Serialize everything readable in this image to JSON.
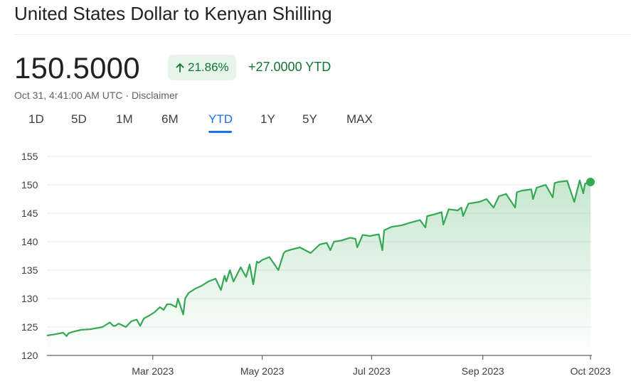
{
  "header": {
    "title": "United States Dollar to Kenyan Shilling"
  },
  "quote": {
    "price": "150.5000",
    "percent_change": "21.86%",
    "arrow_icon": "arrow-up-icon",
    "ytd_change": "+27.0000 YTD",
    "timestamp": "Oct 31, 4:41:00 AM UTC",
    "separator": " · ",
    "disclaimer": "Disclaimer",
    "positive_color": "#137333",
    "badge_bg": "#e6f4ea"
  },
  "tabs": [
    {
      "label": "1D",
      "active": false
    },
    {
      "label": "5D",
      "active": false
    },
    {
      "label": "1M",
      "active": false
    },
    {
      "label": "6M",
      "active": false
    },
    {
      "label": "YTD",
      "active": true
    },
    {
      "label": "1Y",
      "active": false
    },
    {
      "label": "5Y",
      "active": false
    },
    {
      "label": "MAX",
      "active": false
    }
  ],
  "chart_data": {
    "type": "area",
    "line_color": "#34a853",
    "ylim": [
      120,
      155
    ],
    "y_ticks": [
      120,
      125,
      130,
      135,
      140,
      145,
      150,
      155
    ],
    "x_range": [
      "2023-01-01",
      "2023-10-31"
    ],
    "x_ticks": [
      {
        "date": "2023-03-01",
        "label": "Mar 2023"
      },
      {
        "date": "2023-05-01",
        "label": "May 2023"
      },
      {
        "date": "2023-07-01",
        "label": "Jul 2023"
      },
      {
        "date": "2023-09-01",
        "label": "Sep 2023"
      },
      {
        "date": "2023-10-31",
        "label": "Oct 2023"
      }
    ],
    "grid": true,
    "series": [
      {
        "x": [
          "2023-01-01",
          "2023-01-05",
          "2023-01-10",
          "2023-01-12",
          "2023-01-13",
          "2023-01-16",
          "2023-01-20",
          "2023-01-25",
          "2023-02-01",
          "2023-02-05",
          "2023-02-07",
          "2023-02-08",
          "2023-02-10",
          "2023-02-14",
          "2023-02-17",
          "2023-02-20",
          "2023-02-22",
          "2023-02-24",
          "2023-02-27",
          "2023-03-02",
          "2023-03-05",
          "2023-03-07",
          "2023-03-09",
          "2023-03-11",
          "2023-03-14",
          "2023-03-15",
          "2023-03-18",
          "2023-03-19",
          "2023-03-21",
          "2023-03-25",
          "2023-03-28",
          "2023-04-01",
          "2023-04-05",
          "2023-04-08",
          "2023-04-10",
          "2023-04-11",
          "2023-04-13",
          "2023-04-15",
          "2023-04-19",
          "2023-04-22",
          "2023-04-24",
          "2023-04-26",
          "2023-04-28",
          "2023-04-29",
          "2023-05-01",
          "2023-05-05",
          "2023-05-10",
          "2023-05-13",
          "2023-05-14",
          "2023-05-17",
          "2023-05-22",
          "2023-05-28",
          "2023-06-02",
          "2023-06-06",
          "2023-06-08",
          "2023-06-10",
          "2023-06-14",
          "2023-06-19",
          "2023-06-22",
          "2023-06-23",
          "2023-06-26",
          "2023-06-30",
          "2023-07-05",
          "2023-07-07",
          "2023-07-08",
          "2023-07-12",
          "2023-07-18",
          "2023-07-22",
          "2023-07-28",
          "2023-07-31",
          "2023-08-01",
          "2023-08-05",
          "2023-08-09",
          "2023-08-10",
          "2023-08-13",
          "2023-08-18",
          "2023-08-20",
          "2023-08-21",
          "2023-08-24",
          "2023-08-30",
          "2023-09-03",
          "2023-09-07",
          "2023-09-10",
          "2023-09-14",
          "2023-09-19",
          "2023-09-20",
          "2023-09-23",
          "2023-09-28",
          "2023-09-29",
          "2023-10-01",
          "2023-10-06",
          "2023-10-10",
          "2023-10-11",
          "2023-10-13",
          "2023-10-18",
          "2023-10-22",
          "2023-10-25",
          "2023-10-27",
          "2023-10-28",
          "2023-10-31"
        ],
        "y": [
          123.5,
          123.7,
          124.0,
          123.4,
          123.9,
          124.2,
          124.5,
          124.6,
          125.0,
          125.8,
          125.2,
          125.2,
          125.6,
          125.0,
          126.0,
          126.3,
          125.2,
          126.5,
          127.0,
          127.6,
          128.5,
          128.0,
          129.0,
          129.0,
          128.5,
          130.0,
          127.2,
          130.0,
          131.0,
          131.8,
          132.2,
          133.0,
          133.5,
          131.5,
          134.0,
          133.0,
          135.0,
          133.0,
          135.5,
          133.8,
          136.0,
          132.5,
          136.5,
          136.3,
          136.8,
          137.3,
          135.0,
          138.0,
          138.3,
          138.6,
          139.0,
          138.0,
          139.5,
          139.8,
          138.5,
          140.0,
          140.2,
          140.7,
          140.5,
          139.0,
          141.2,
          141.0,
          141.3,
          138.5,
          142.0,
          142.6,
          142.9,
          143.3,
          143.8,
          142.5,
          144.5,
          144.8,
          145.2,
          143.0,
          145.7,
          145.5,
          146.0,
          144.5,
          146.7,
          147.0,
          147.5,
          146.0,
          148.0,
          148.4,
          146.0,
          148.7,
          149.0,
          149.2,
          147.5,
          149.5,
          150.0,
          147.8,
          150.3,
          150.5,
          150.7,
          147.0,
          150.8,
          148.5,
          150.2,
          150.5
        ]
      }
    ]
  }
}
